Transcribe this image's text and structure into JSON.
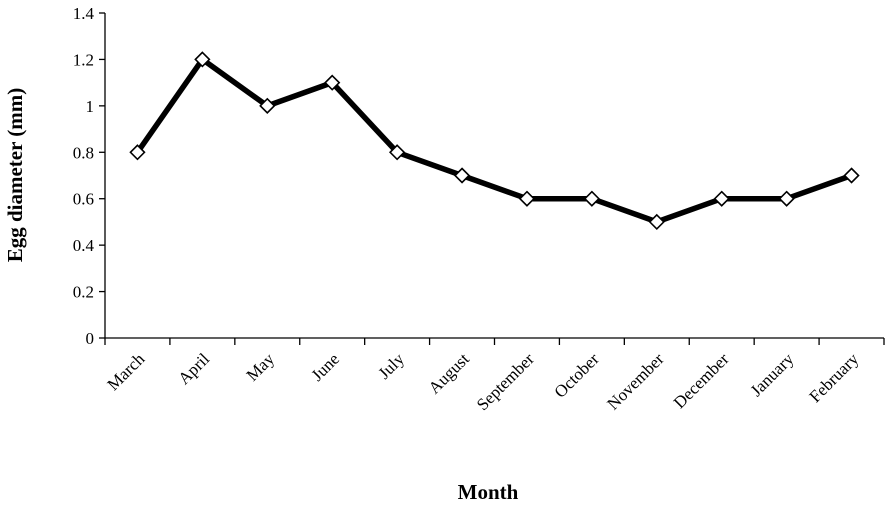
{
  "chart_data": {
    "type": "line",
    "title": "",
    "xlabel": "Month",
    "ylabel": "Egg diameter (mm)",
    "categories": [
      "March",
      "April",
      "May",
      "June",
      "July",
      "August",
      "September",
      "October",
      "November",
      "December",
      "January",
      "February"
    ],
    "series": [
      {
        "values": [
          0.8,
          1.2,
          1.0,
          1.1,
          0.8,
          0.7,
          0.6,
          0.6,
          0.5,
          0.6,
          0.6,
          0.7
        ],
        "color": "#000000",
        "marker": "diamond"
      }
    ],
    "ylim": [
      0,
      1.4
    ],
    "yticks": [
      "0",
      "0.2",
      "0.4",
      "0.6",
      "0.8",
      "1",
      "1.2",
      "1.4"
    ],
    "grid": false,
    "legend": "none"
  }
}
